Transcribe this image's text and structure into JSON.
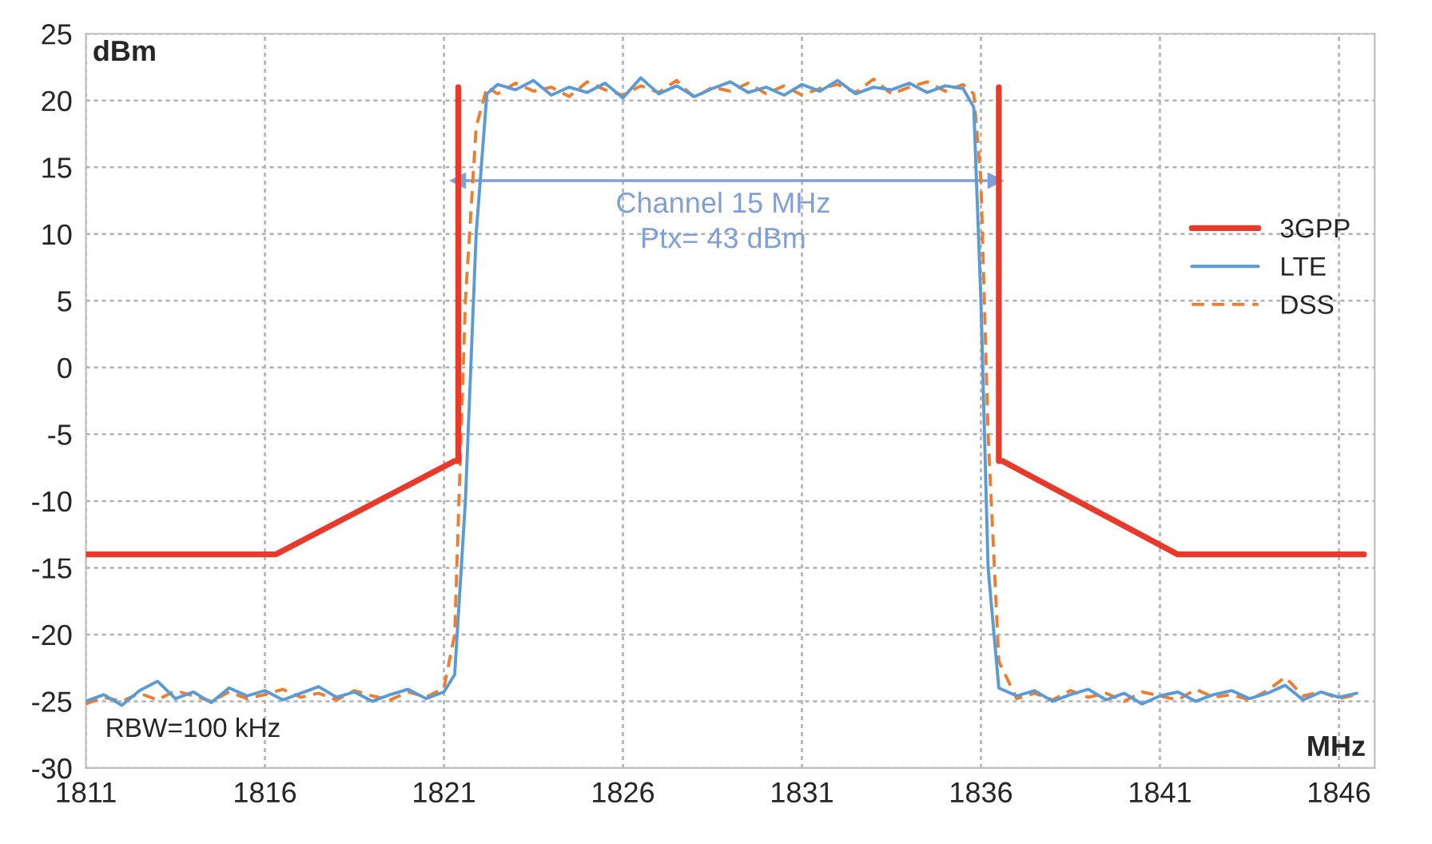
{
  "chart_data": {
    "type": "line",
    "ylabel": "dBm",
    "xlabel": "MHz",
    "xlim": [
      1811,
      1847
    ],
    "xticks": [
      1811,
      1816,
      1821,
      1826,
      1831,
      1836,
      1841,
      1846
    ],
    "ylim": [
      -30,
      25
    ],
    "yticks": [
      -30,
      -25,
      -20,
      -15,
      -10,
      -5,
      0,
      5,
      10,
      15,
      20,
      25
    ],
    "grid": true,
    "legend": "right",
    "marker": "none",
    "annotations": [
      {
        "text": "Channel 15 MHz\nPtx= 43 dBm",
        "x": 1828.8,
        "y": 14
      },
      "RBW=100 kHz"
    ],
    "series": [
      {
        "name": "3GPP",
        "color": "#e8392a",
        "line_style": "solid",
        "x": [
          1811,
          1816.3,
          1821.3,
          1821.4,
          1821.4,
          null,
          1836.5,
          1836.5,
          1836.6,
          1841.5,
          1846.7
        ],
        "values": [
          -14,
          -14,
          -7,
          -7,
          21,
          null,
          21,
          -7,
          -7,
          -14,
          -14
        ]
      },
      {
        "name": "LTE",
        "color": "#5b9bd5",
        "line_style": "solid",
        "x": [
          1811,
          1811.5,
          1812,
          1812.5,
          1813,
          1813.5,
          1814,
          1814.5,
          1815,
          1815.5,
          1816,
          1816.5,
          1817,
          1817.5,
          1818,
          1818.5,
          1819,
          1819.5,
          1820,
          1820.5,
          1821,
          1821.3,
          1821.6,
          1821.9,
          1822.2,
          1822.5,
          1823,
          1823.5,
          1824,
          1824.5,
          1825,
          1825.5,
          1826,
          1826.5,
          1827,
          1827.5,
          1828,
          1828.5,
          1829,
          1829.5,
          1830,
          1830.5,
          1831,
          1831.5,
          1832,
          1832.5,
          1833,
          1833.5,
          1834,
          1834.5,
          1835,
          1835.5,
          1835.8,
          1836,
          1836.2,
          1836.5,
          1837,
          1837.5,
          1838,
          1838.5,
          1839,
          1839.5,
          1840,
          1840.5,
          1841,
          1841.5,
          1842,
          1842.5,
          1843,
          1843.5,
          1844,
          1844.5,
          1845,
          1845.5,
          1846,
          1846.5
        ],
        "values": [
          -25,
          -24.5,
          -25.3,
          -24.2,
          -23.5,
          -24.8,
          -24.3,
          -25.1,
          -24.0,
          -24.6,
          -24.2,
          -24.9,
          -24.4,
          -23.9,
          -24.7,
          -24.3,
          -25.0,
          -24.5,
          -24.1,
          -24.8,
          -24.3,
          -23,
          -10,
          10,
          20.5,
          21.2,
          20.8,
          21.5,
          20.4,
          21.0,
          20.6,
          21.3,
          20.2,
          21.7,
          20.5,
          21.1,
          20.3,
          20.9,
          21.4,
          20.6,
          21.0,
          20.4,
          21.2,
          20.7,
          21.5,
          20.5,
          21.0,
          20.8,
          21.3,
          20.6,
          21.1,
          20.9,
          19.5,
          5,
          -15,
          -24,
          -24.6,
          -24.2,
          -25.0,
          -24.5,
          -24.1,
          -24.9,
          -24.4,
          -25.2,
          -24.6,
          -24.3,
          -25.0,
          -24.5,
          -24.2,
          -24.8,
          -24.4,
          -23.8,
          -24.9,
          -24.3,
          -24.7,
          -24.4
        ]
      },
      {
        "name": "DSS",
        "color": "#ed7d31",
        "line_style": "dashed",
        "x": [
          1811,
          1811.5,
          1812,
          1812.5,
          1813,
          1813.5,
          1814,
          1814.5,
          1815,
          1815.5,
          1816,
          1816.5,
          1817,
          1817.5,
          1818,
          1818.5,
          1819,
          1819.5,
          1820,
          1820.5,
          1821,
          1821.3,
          1821.6,
          1821.9,
          1822.2,
          1822.5,
          1823,
          1823.5,
          1824,
          1824.5,
          1825,
          1825.5,
          1826,
          1826.5,
          1827,
          1827.5,
          1828,
          1828.5,
          1829,
          1829.5,
          1830,
          1830.5,
          1831,
          1831.5,
          1832,
          1832.5,
          1833,
          1833.5,
          1834,
          1834.5,
          1835,
          1835.5,
          1835.8,
          1836,
          1836.2,
          1836.5,
          1837,
          1837.5,
          1838,
          1838.5,
          1839,
          1839.5,
          1840,
          1840.5,
          1841,
          1841.5,
          1842,
          1842.5,
          1843,
          1843.5,
          1844,
          1844.5,
          1845,
          1845.5,
          1846,
          1846.5
        ],
        "values": [
          -25.2,
          -24.7,
          -25.0,
          -24.4,
          -24.9,
          -24.2,
          -24.6,
          -25.0,
          -24.3,
          -24.8,
          -24.5,
          -24.1,
          -24.7,
          -24.4,
          -24.9,
          -24.2,
          -24.6,
          -24.9,
          -24.3,
          -24.7,
          -24.0,
          -20,
          5,
          18,
          21,
          20.5,
          21.3,
          20.7,
          21.0,
          20.3,
          21.4,
          20.8,
          20.4,
          21.1,
          20.6,
          21.5,
          20.2,
          21.0,
          20.7,
          21.3,
          20.5,
          21.1,
          20.4,
          20.9,
          21.2,
          20.6,
          21.6,
          20.5,
          21.0,
          21.4,
          20.7,
          21.2,
          20.5,
          14,
          -5,
          -22,
          -24.8,
          -24.4,
          -24.9,
          -24.2,
          -24.7,
          -24.4,
          -25.0,
          -24.3,
          -24.6,
          -24.9,
          -24.1,
          -24.7,
          -24.5,
          -24.9,
          -24.2,
          -23.2,
          -24.6,
          -24.3,
          -24.8,
          -24.5
        ]
      },
      {
        "color": "#7f9fd8",
        "line_style": "solid",
        "marker": "triangle",
        "x": [
          1821.4,
          1836.4
        ],
        "values": [
          14,
          14
        ]
      }
    ]
  }
}
